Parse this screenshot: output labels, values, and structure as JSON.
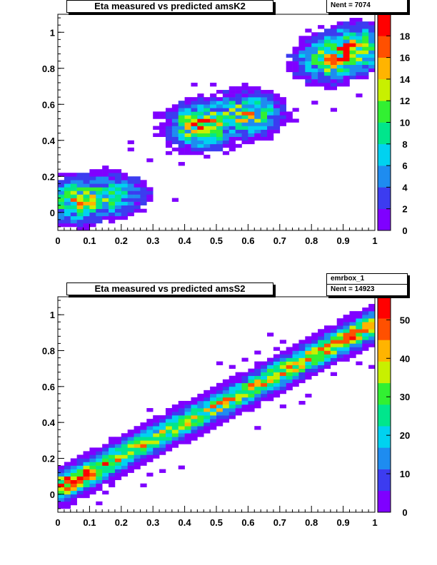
{
  "chart_data": [
    {
      "type": "heatmap",
      "title": "Eta measured vs predicted amsK2",
      "stats": {
        "name": "",
        "entries_label": "Nent = 7074"
      },
      "xlim": [
        0,
        1
      ],
      "ylim": [
        -0.1,
        1.1
      ],
      "x_ticks": [
        "0",
        "0.1",
        "0.2",
        "0.3",
        "0.4",
        "0.5",
        "0.6",
        "0.7",
        "0.8",
        "0.9",
        "1"
      ],
      "y_ticks": [
        "0",
        "0.2",
        "0.4",
        "0.6",
        "0.8",
        "1"
      ],
      "z_range": [
        0,
        20
      ],
      "z_ticks": [
        "0",
        "2",
        "4",
        "6",
        "8",
        "10",
        "12",
        "14",
        "16",
        "18"
      ],
      "palette": [
        "#7f00ff",
        "#3c3cf0",
        "#1e8cf0",
        "#00d2f0",
        "#00e68c",
        "#32f032",
        "#c8f000",
        "#ffb400",
        "#ff5000",
        "#ff0000"
      ],
      "clusters": [
        {
          "x": 0.06,
          "y": 0.06,
          "peak": 12
        },
        {
          "x": 0.18,
          "y": 0.1,
          "peak": 8
        },
        {
          "x": 0.45,
          "y": 0.48,
          "peak": 16
        },
        {
          "x": 0.6,
          "y": 0.55,
          "peak": 12
        },
        {
          "x": 0.85,
          "y": 0.85,
          "peak": 12
        },
        {
          "x": 0.95,
          "y": 0.92,
          "peak": 14
        }
      ]
    },
    {
      "type": "heatmap",
      "title": "Eta measured vs predicted amsS2",
      "stats": {
        "name": "emrbox_1",
        "entries_label": "Nent = 14923"
      },
      "xlim": [
        0,
        1
      ],
      "ylim": [
        -0.1,
        1.1
      ],
      "x_ticks": [
        "0",
        "0.1",
        "0.2",
        "0.3",
        "0.4",
        "0.5",
        "0.6",
        "0.7",
        "0.8",
        "0.9",
        "1"
      ],
      "y_ticks": [
        "0",
        "0.2",
        "0.4",
        "0.6",
        "0.8",
        "1"
      ],
      "z_range": [
        0,
        56
      ],
      "z_ticks": [
        "0",
        "10",
        "20",
        "30",
        "40",
        "50"
      ],
      "palette": [
        "#7f00ff",
        "#3c3cf0",
        "#1e8cf0",
        "#00d2f0",
        "#00e68c",
        "#32f032",
        "#c8f000",
        "#ffb400",
        "#ff5000",
        "#ff0000"
      ],
      "ridge": {
        "slope": 0.92,
        "intercept": 0.03,
        "peak": 50,
        "sigma": 0.045
      }
    }
  ]
}
